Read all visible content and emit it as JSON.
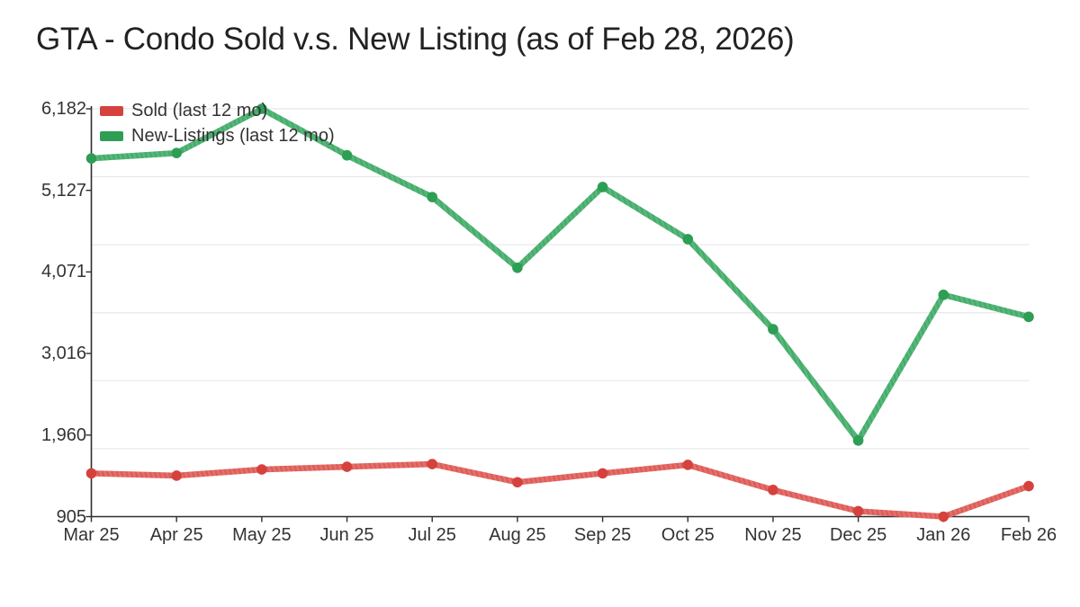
{
  "chart_data": {
    "type": "line",
    "title": "GTA - Condo Sold v.s. New Listing (as of Feb 28, 2026)",
    "categories": [
      "Mar 25",
      "Apr 25",
      "May 25",
      "Jun 25",
      "Jul 25",
      "Aug 25",
      "Sep 25",
      "Oct 25",
      "Nov 25",
      "Dec 25",
      "Jan 26",
      "Feb 26"
    ],
    "series": [
      {
        "name": "Sold (last 12 mo)",
        "line_color": "#e4706c",
        "marker_color": "#d5423d",
        "values": [
          1465,
          1435,
          1515,
          1550,
          1585,
          1350,
          1465,
          1575,
          1250,
          975,
          905,
          1300
        ]
      },
      {
        "name": "New-Listings (last 12 mo)",
        "line_color": "#58b77b",
        "marker_color": "#2d9e54",
        "values": [
          5540,
          5610,
          6182,
          5580,
          5040,
          4125,
          5170,
          4495,
          3330,
          1890,
          3775,
          3490
        ]
      }
    ],
    "y_ticks": [
      905,
      1960,
      3016,
      4071,
      5127,
      6182
    ],
    "y_tick_labels": [
      "905",
      "1,960",
      "3,016",
      "4,071",
      "5,127",
      "6,182"
    ],
    "ylim": [
      905,
      6182
    ],
    "xlabel": "",
    "ylabel": "",
    "grid": "horizontal",
    "gridline_count": 7,
    "legend_position": "top-left-inside"
  },
  "colors": {
    "background": "#ffffff",
    "gridline": "#e8e8e8",
    "axis": "#2e2e2e",
    "tick_text": "#333333",
    "title_text": "#222222"
  }
}
